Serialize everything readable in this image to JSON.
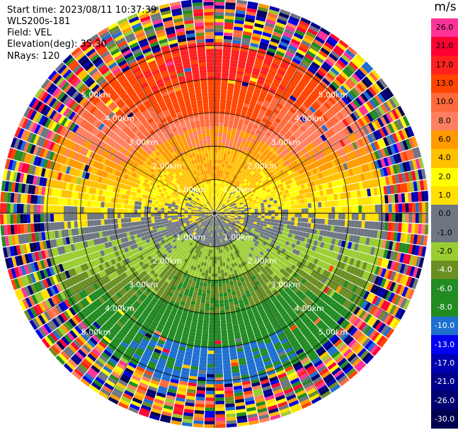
{
  "header": {
    "start_time": "Start time: 2023/08/11 10:37:39",
    "instrument": "WLS200s-181",
    "field": "Field: VEL",
    "elevation": "Elevation(deg): 35.30",
    "nrays": "NRays: 120"
  },
  "colorbar": {
    "unit": "m/s",
    "labels": [
      "26.0",
      "21.0",
      "17.0",
      "13.0",
      "10.0",
      "8.0",
      "6.0",
      "4.0",
      "2.0",
      "1.0",
      "0.0",
      "-1.0",
      "-2.0",
      "-4.0",
      "-6.0",
      "-8.0",
      "-10.0",
      "-13.0",
      "-17.0",
      "-21.0",
      "-26.0",
      "-30.0"
    ],
    "colors": [
      "#ff3399",
      "#ff0033",
      "#ff2020",
      "#ff4500",
      "#ff6a3d",
      "#ff8060",
      "#ff9a00",
      "#ffc000",
      "#ffff00",
      "#ffe000",
      "#6e7681",
      "#6e7681",
      "#9acd32",
      "#6b8e23",
      "#228b22",
      "#228b22",
      "#1e6fd0",
      "#0000ee",
      "#0000b0",
      "#00008b",
      "#000070",
      "#000050"
    ]
  },
  "chart_data": {
    "type": "ppi",
    "field": "VEL",
    "unit": "m/s",
    "elevation_deg": 35.3,
    "n_rays": 120,
    "range_rings_km": [
      1.0,
      2.0,
      3.0,
      4.0,
      5.0
    ],
    "ring_labels": [
      "1.00km",
      "2.00km",
      "3.00km",
      "4.00km",
      "5.00km"
    ],
    "max_range_km": 6.4,
    "velocity_pattern": {
      "north": "positive (away, 4 to 17 m/s)",
      "south": "negative (toward, -2 to -10 m/s)",
      "center": "near zero (-1 to 1 m/s)",
      "outer_ring": "noise"
    }
  }
}
